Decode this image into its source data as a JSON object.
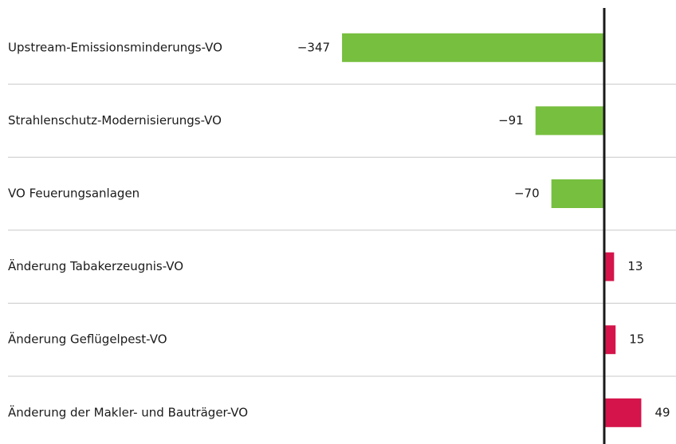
{
  "chart_data": {
    "type": "barh",
    "categories": [
      "Upstream-Emissionsminderungs-VO",
      "Strahlenschutz-Modernisierungs-VO",
      "VO Feuerungsanlagen",
      "Änderung Tabakerzeugnis-VO",
      "Änderung Geflügelpest-VO",
      "Änderung der Makler- und Bauträger-VO"
    ],
    "values": [
      -347,
      -91,
      -70,
      13,
      15,
      49
    ],
    "value_labels": [
      "−347",
      "−91",
      "−70",
      "13",
      "15",
      "49"
    ],
    "negative_color": "#77bf3f",
    "positive_color": "#d4144a"
  }
}
